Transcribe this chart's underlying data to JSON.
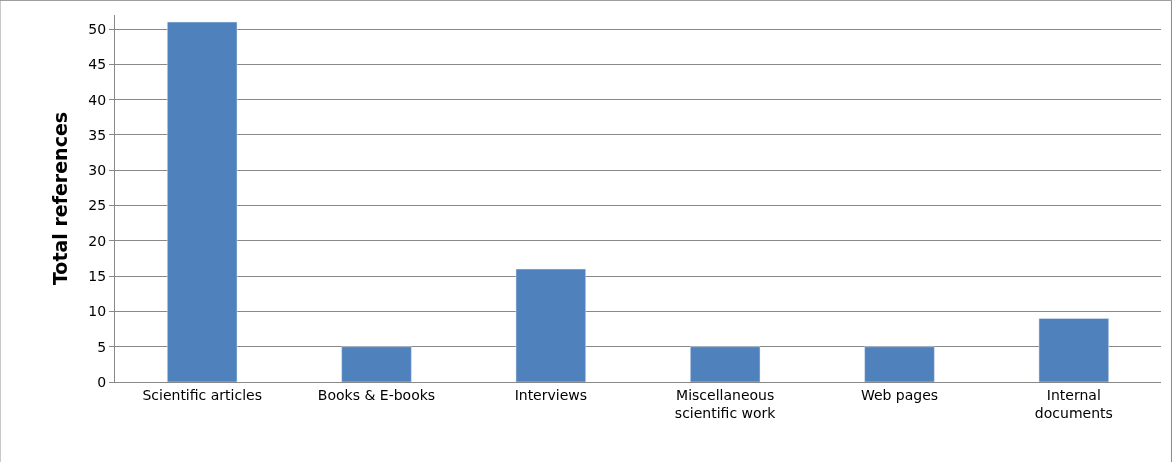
{
  "chart_data": {
    "type": "bar",
    "ylabel": "Total references",
    "categories": [
      "Scientific articles",
      "Books & E-books",
      "Interviews",
      "Miscellaneous\nscientific work",
      "Web pages",
      "Internal\ndocuments"
    ],
    "values": [
      51,
      5,
      16,
      5,
      5,
      9
    ],
    "color": "#4f81bd",
    "ylim": [
      0,
      52
    ],
    "yticks": [
      0,
      5,
      10,
      15,
      20,
      25,
      30,
      35,
      40,
      45,
      50
    ],
    "grid": "y"
  }
}
